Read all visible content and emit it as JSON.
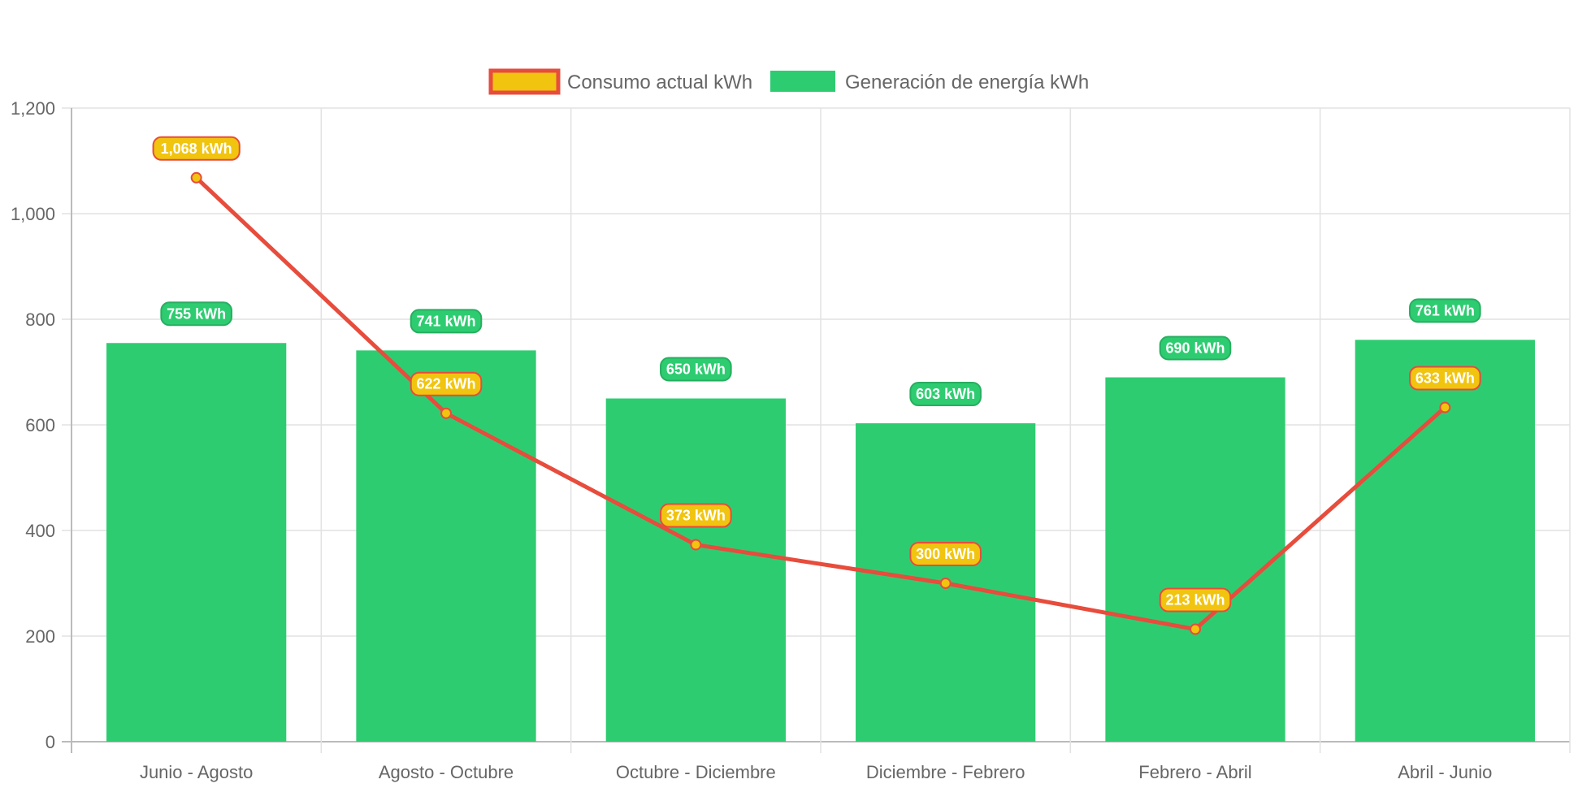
{
  "chart_data": {
    "type": "bar",
    "categories": [
      "Junio - Agosto",
      "Agosto - Octubre",
      "Octubre - Diciembre",
      "Diciembre - Febrero",
      "Febrero - Abril",
      "Abril - Junio"
    ],
    "series": [
      {
        "name": "Consumo actual kWh",
        "type": "line",
        "values": [
          1068,
          622,
          373,
          300,
          213,
          633
        ],
        "labels": [
          "1,068 kWh",
          "622 kWh",
          "373 kWh",
          "300 kWh",
          "213 kWh",
          "633 kWh"
        ],
        "line_color": "#e74c3c",
        "fill_color": "#f1c40f"
      },
      {
        "name": "Generación de energía kWh",
        "type": "bar",
        "values": [
          755,
          741,
          650,
          603,
          690,
          761
        ],
        "labels": [
          "755 kWh",
          "741 kWh",
          "650 kWh",
          "603 kWh",
          "690 kWh",
          "761 kWh"
        ],
        "color": "#2ecc71",
        "label_border_color": "#27ae60"
      }
    ],
    "y_ticks": [
      "0",
      "200",
      "400",
      "600",
      "800",
      "1,000",
      "1,200"
    ],
    "ylim": [
      0,
      1200
    ],
    "grid": true,
    "legend_position": "top-center",
    "title": "",
    "xlabel": "",
    "ylabel": ""
  }
}
